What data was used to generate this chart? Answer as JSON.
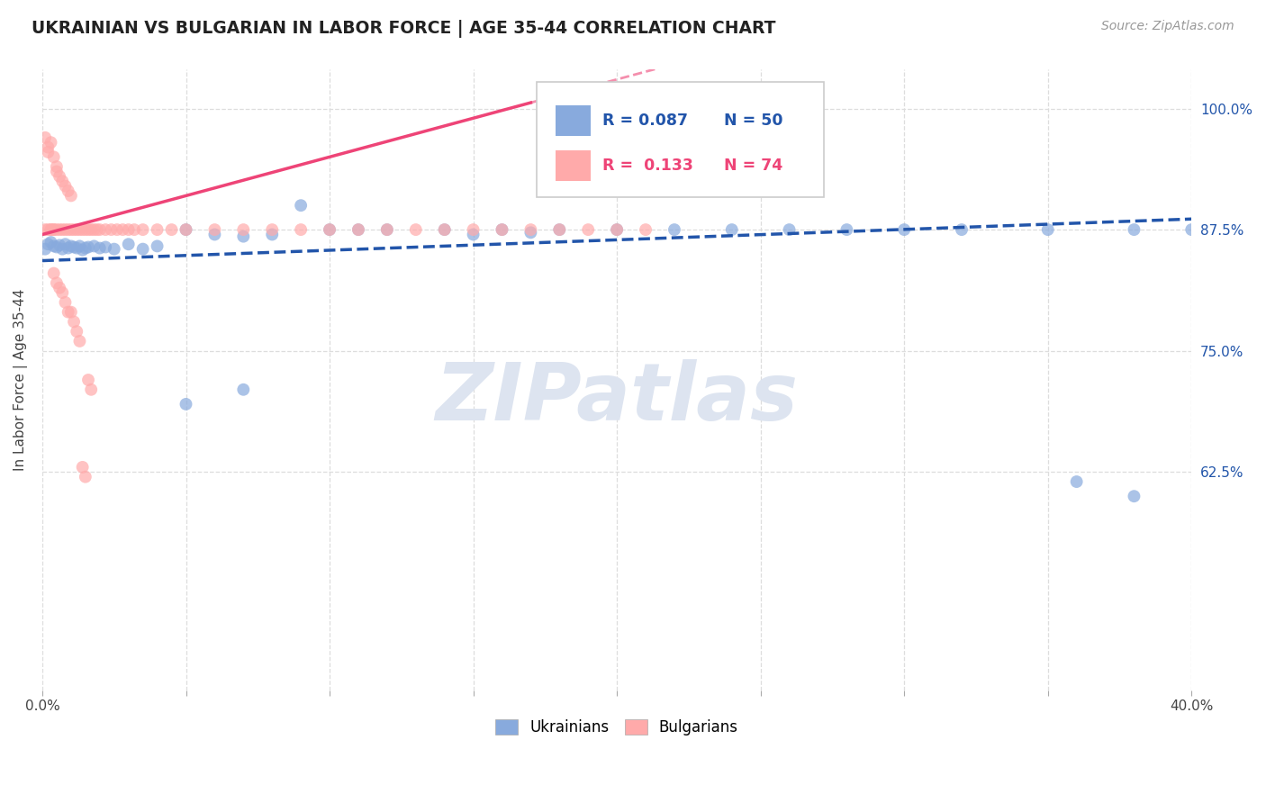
{
  "title": "UKRAINIAN VS BULGARIAN IN LABOR FORCE | AGE 35-44 CORRELATION CHART",
  "source": "Source: ZipAtlas.com",
  "ylabel": "In Labor Force | Age 35-44",
  "xlim": [
    0.0,
    0.4
  ],
  "ylim": [
    0.4,
    1.04
  ],
  "ytick_positions": [
    0.625,
    0.75,
    0.875,
    1.0
  ],
  "ytick_labels": [
    "62.5%",
    "75.0%",
    "87.5%",
    "100.0%"
  ],
  "ukrainian_color": "#88AADD",
  "bulgarian_color": "#FFAAAA",
  "trendline_uk_color": "#2255AA",
  "trendline_bg_color": "#EE4477",
  "watermark_color": "#DDE4F0",
  "grid_color": "#DDDDDD",
  "uk_x": [
    0.001,
    0.002,
    0.003,
    0.004,
    0.005,
    0.006,
    0.007,
    0.008,
    0.009,
    0.01,
    0.011,
    0.012,
    0.013,
    0.014,
    0.015,
    0.016,
    0.018,
    0.02,
    0.022,
    0.025,
    0.03,
    0.035,
    0.04,
    0.05,
    0.06,
    0.07,
    0.08,
    0.09,
    0.1,
    0.11,
    0.12,
    0.14,
    0.16,
    0.18,
    0.2,
    0.22,
    0.24,
    0.26,
    0.28,
    0.3,
    0.32,
    0.35,
    0.38,
    0.4,
    0.15,
    0.17,
    0.05,
    0.07,
    0.38,
    0.36
  ],
  "uk_y": [
    0.855,
    0.86,
    0.862,
    0.858,
    0.857,
    0.859,
    0.855,
    0.86,
    0.856,
    0.858,
    0.857,
    0.856,
    0.858,
    0.854,
    0.856,
    0.857,
    0.858,
    0.856,
    0.857,
    0.855,
    0.86,
    0.855,
    0.858,
    0.875,
    0.87,
    0.868,
    0.87,
    0.9,
    0.875,
    0.875,
    0.875,
    0.875,
    0.875,
    0.875,
    0.875,
    0.875,
    0.875,
    0.875,
    0.875,
    0.875,
    0.875,
    0.875,
    0.875,
    0.875,
    0.87,
    0.872,
    0.695,
    0.71,
    0.6,
    0.615
  ],
  "bg_x": [
    0.001,
    0.001,
    0.002,
    0.002,
    0.002,
    0.003,
    0.003,
    0.003,
    0.004,
    0.004,
    0.004,
    0.005,
    0.005,
    0.005,
    0.006,
    0.006,
    0.007,
    0.007,
    0.008,
    0.008,
    0.009,
    0.009,
    0.01,
    0.01,
    0.011,
    0.012,
    0.013,
    0.014,
    0.015,
    0.016,
    0.017,
    0.018,
    0.019,
    0.02,
    0.022,
    0.024,
    0.026,
    0.028,
    0.03,
    0.032,
    0.035,
    0.04,
    0.045,
    0.05,
    0.06,
    0.07,
    0.08,
    0.09,
    0.1,
    0.11,
    0.12,
    0.13,
    0.14,
    0.15,
    0.16,
    0.17,
    0.18,
    0.19,
    0.2,
    0.21,
    0.004,
    0.005,
    0.006,
    0.007,
    0.008,
    0.009,
    0.01,
    0.011,
    0.012,
    0.013,
    0.014,
    0.015,
    0.016,
    0.017
  ],
  "bg_y": [
    0.875,
    0.97,
    0.875,
    0.96,
    0.955,
    0.875,
    0.965,
    0.875,
    0.875,
    0.95,
    0.875,
    0.94,
    0.875,
    0.935,
    0.875,
    0.93,
    0.875,
    0.925,
    0.875,
    0.92,
    0.875,
    0.915,
    0.875,
    0.91,
    0.875,
    0.875,
    0.875,
    0.875,
    0.875,
    0.875,
    0.875,
    0.875,
    0.875,
    0.875,
    0.875,
    0.875,
    0.875,
    0.875,
    0.875,
    0.875,
    0.875,
    0.875,
    0.875,
    0.875,
    0.875,
    0.875,
    0.875,
    0.875,
    0.875,
    0.875,
    0.875,
    0.875,
    0.875,
    0.875,
    0.875,
    0.875,
    0.875,
    0.875,
    0.875,
    0.875,
    0.83,
    0.82,
    0.815,
    0.81,
    0.8,
    0.79,
    0.79,
    0.78,
    0.77,
    0.76,
    0.63,
    0.62,
    0.72,
    0.71
  ]
}
